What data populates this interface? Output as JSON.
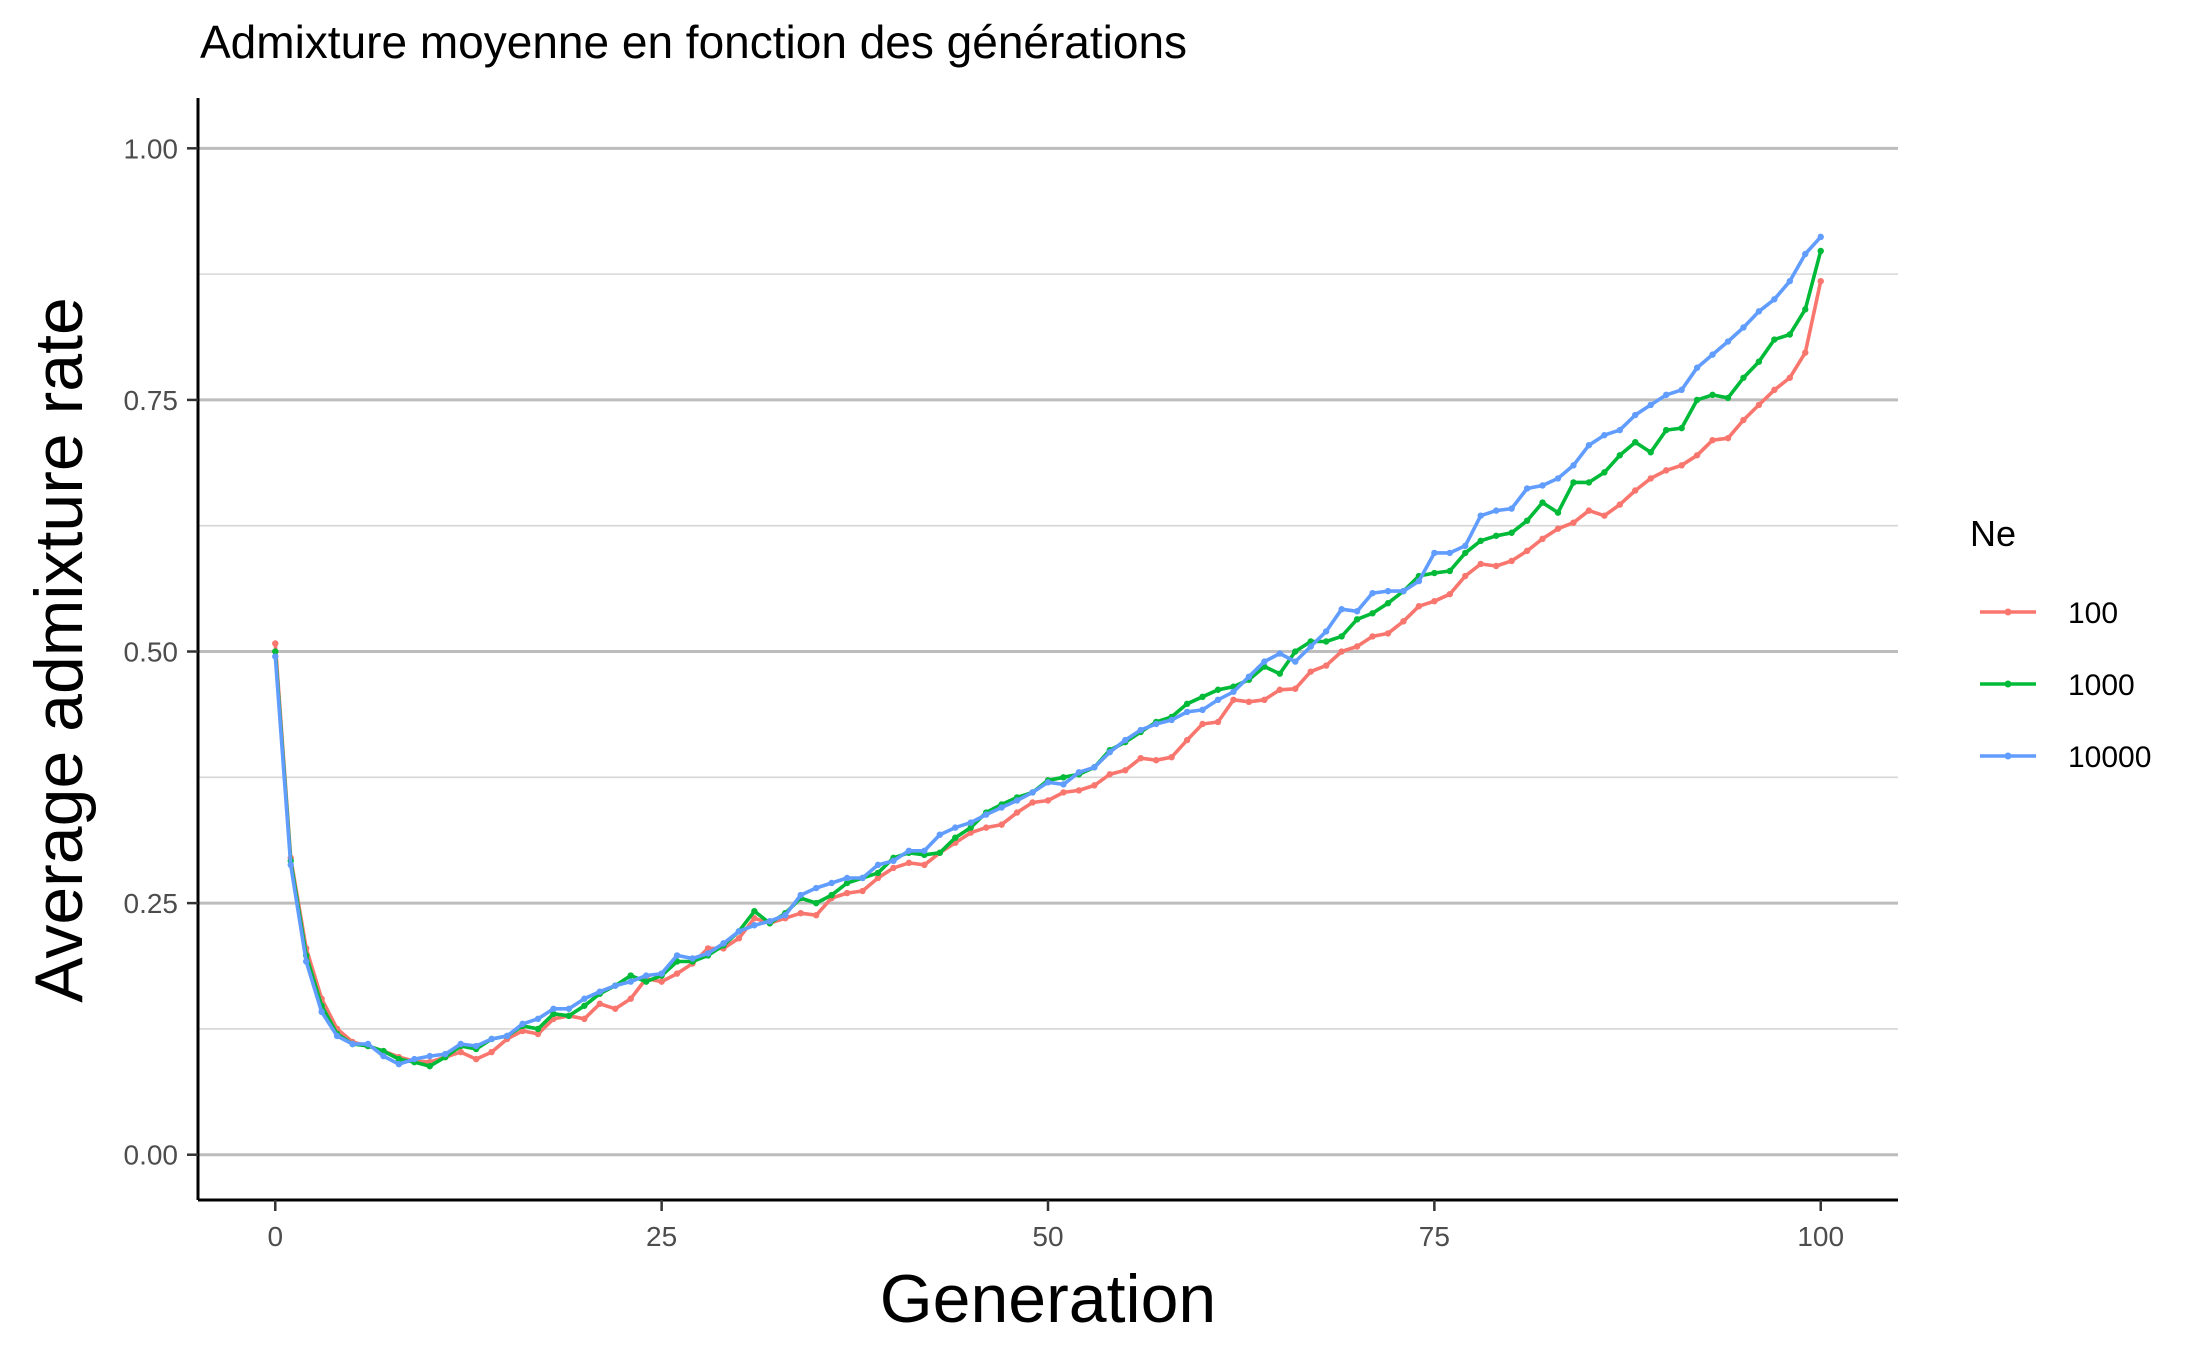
{
  "chart_data": {
    "type": "line",
    "title": "Admixture moyenne en fonction des générations",
    "xlabel": "Generation",
    "ylabel": "Average admixture rate",
    "xlim": [
      -5,
      105
    ],
    "ylim": [
      -0.045,
      1.05
    ],
    "x_ticks": [
      0,
      25,
      50,
      75,
      100
    ],
    "x_tick_labels": [
      "0",
      "25",
      "50",
      "75",
      "100"
    ],
    "y_ticks": [
      0,
      0.25,
      0.5,
      0.75,
      1
    ],
    "y_tick_labels": [
      "0.00",
      "0.25",
      "0.50",
      "0.75",
      "1.00"
    ],
    "y_minor_ticks": [
      0.125,
      0.375,
      0.625,
      0.875
    ],
    "grid": "horizontal",
    "legend_title": "Ne",
    "legend_position": "right",
    "x": [
      0,
      1,
      2,
      3,
      4,
      5,
      6,
      7,
      8,
      9,
      10,
      11,
      12,
      13,
      14,
      15,
      16,
      17,
      18,
      19,
      20,
      21,
      22,
      23,
      24,
      25,
      26,
      27,
      28,
      29,
      30,
      31,
      32,
      33,
      34,
      35,
      36,
      37,
      38,
      39,
      40,
      41,
      42,
      43,
      44,
      45,
      46,
      47,
      48,
      49,
      50,
      51,
      52,
      53,
      54,
      55,
      56,
      57,
      58,
      59,
      60,
      61,
      62,
      63,
      64,
      65,
      66,
      67,
      68,
      69,
      70,
      71,
      72,
      73,
      74,
      75,
      76,
      77,
      78,
      79,
      80,
      81,
      82,
      83,
      84,
      85,
      86,
      87,
      88,
      89,
      90,
      91,
      92,
      93,
      94,
      95,
      96,
      97,
      98,
      99,
      100
    ],
    "series": [
      {
        "name": "100",
        "color": "#F8766D",
        "values": [
          0.508,
          0.295,
          0.205,
          0.155,
          0.125,
          0.112,
          0.108,
          0.103,
          0.097,
          0.093,
          0.092,
          0.097,
          0.102,
          0.095,
          0.102,
          0.115,
          0.123,
          0.12,
          0.135,
          0.138,
          0.135,
          0.15,
          0.145,
          0.155,
          0.175,
          0.172,
          0.18,
          0.19,
          0.205,
          0.205,
          0.215,
          0.235,
          0.23,
          0.235,
          0.24,
          0.238,
          0.255,
          0.26,
          0.262,
          0.275,
          0.285,
          0.29,
          0.288,
          0.3,
          0.31,
          0.32,
          0.325,
          0.328,
          0.34,
          0.35,
          0.352,
          0.36,
          0.362,
          0.367,
          0.378,
          0.382,
          0.394,
          0.392,
          0.395,
          0.412,
          0.428,
          0.43,
          0.452,
          0.45,
          0.452,
          0.462,
          0.463,
          0.48,
          0.486,
          0.5,
          0.505,
          0.515,
          0.518,
          0.53,
          0.545,
          0.55,
          0.557,
          0.575,
          0.587,
          0.585,
          0.59,
          0.6,
          0.612,
          0.622,
          0.628,
          0.64,
          0.635,
          0.646,
          0.66,
          0.672,
          0.68,
          0.685,
          0.695,
          0.71,
          0.712,
          0.73,
          0.745,
          0.76,
          0.772,
          0.797,
          0.868
        ]
      },
      {
        "name": "1000",
        "color": "#00BA38",
        "values": [
          0.5,
          0.292,
          0.198,
          0.148,
          0.12,
          0.11,
          0.108,
          0.103,
          0.095,
          0.092,
          0.088,
          0.097,
          0.108,
          0.105,
          0.115,
          0.118,
          0.128,
          0.125,
          0.14,
          0.138,
          0.148,
          0.16,
          0.168,
          0.178,
          0.172,
          0.178,
          0.192,
          0.192,
          0.198,
          0.208,
          0.222,
          0.242,
          0.23,
          0.24,
          0.255,
          0.25,
          0.258,
          0.27,
          0.275,
          0.28,
          0.295,
          0.3,
          0.298,
          0.3,
          0.315,
          0.325,
          0.34,
          0.348,
          0.355,
          0.36,
          0.372,
          0.375,
          0.378,
          0.385,
          0.402,
          0.41,
          0.42,
          0.43,
          0.435,
          0.448,
          0.455,
          0.462,
          0.465,
          0.472,
          0.485,
          0.478,
          0.5,
          0.51,
          0.51,
          0.515,
          0.532,
          0.538,
          0.548,
          0.56,
          0.575,
          0.578,
          0.58,
          0.598,
          0.61,
          0.615,
          0.618,
          0.63,
          0.648,
          0.638,
          0.668,
          0.668,
          0.678,
          0.695,
          0.708,
          0.698,
          0.72,
          0.722,
          0.75,
          0.755,
          0.752,
          0.772,
          0.788,
          0.81,
          0.815,
          0.84,
          0.898
        ]
      },
      {
        "name": "10000",
        "color": "#619CFF",
        "values": [
          0.495,
          0.288,
          0.192,
          0.142,
          0.118,
          0.11,
          0.11,
          0.098,
          0.09,
          0.095,
          0.098,
          0.1,
          0.11,
          0.108,
          0.115,
          0.118,
          0.13,
          0.135,
          0.145,
          0.145,
          0.155,
          0.162,
          0.168,
          0.172,
          0.178,
          0.18,
          0.198,
          0.195,
          0.2,
          0.21,
          0.222,
          0.228,
          0.232,
          0.238,
          0.258,
          0.265,
          0.27,
          0.275,
          0.275,
          0.288,
          0.292,
          0.302,
          0.302,
          0.318,
          0.325,
          0.33,
          0.338,
          0.345,
          0.352,
          0.36,
          0.37,
          0.368,
          0.38,
          0.385,
          0.4,
          0.412,
          0.422,
          0.428,
          0.432,
          0.44,
          0.442,
          0.452,
          0.46,
          0.475,
          0.49,
          0.498,
          0.49,
          0.505,
          0.52,
          0.542,
          0.54,
          0.558,
          0.56,
          0.56,
          0.57,
          0.598,
          0.598,
          0.605,
          0.635,
          0.64,
          0.642,
          0.662,
          0.665,
          0.672,
          0.685,
          0.705,
          0.715,
          0.72,
          0.735,
          0.745,
          0.755,
          0.76,
          0.782,
          0.795,
          0.808,
          0.822,
          0.838,
          0.85,
          0.868,
          0.895,
          0.912
        ]
      }
    ]
  }
}
